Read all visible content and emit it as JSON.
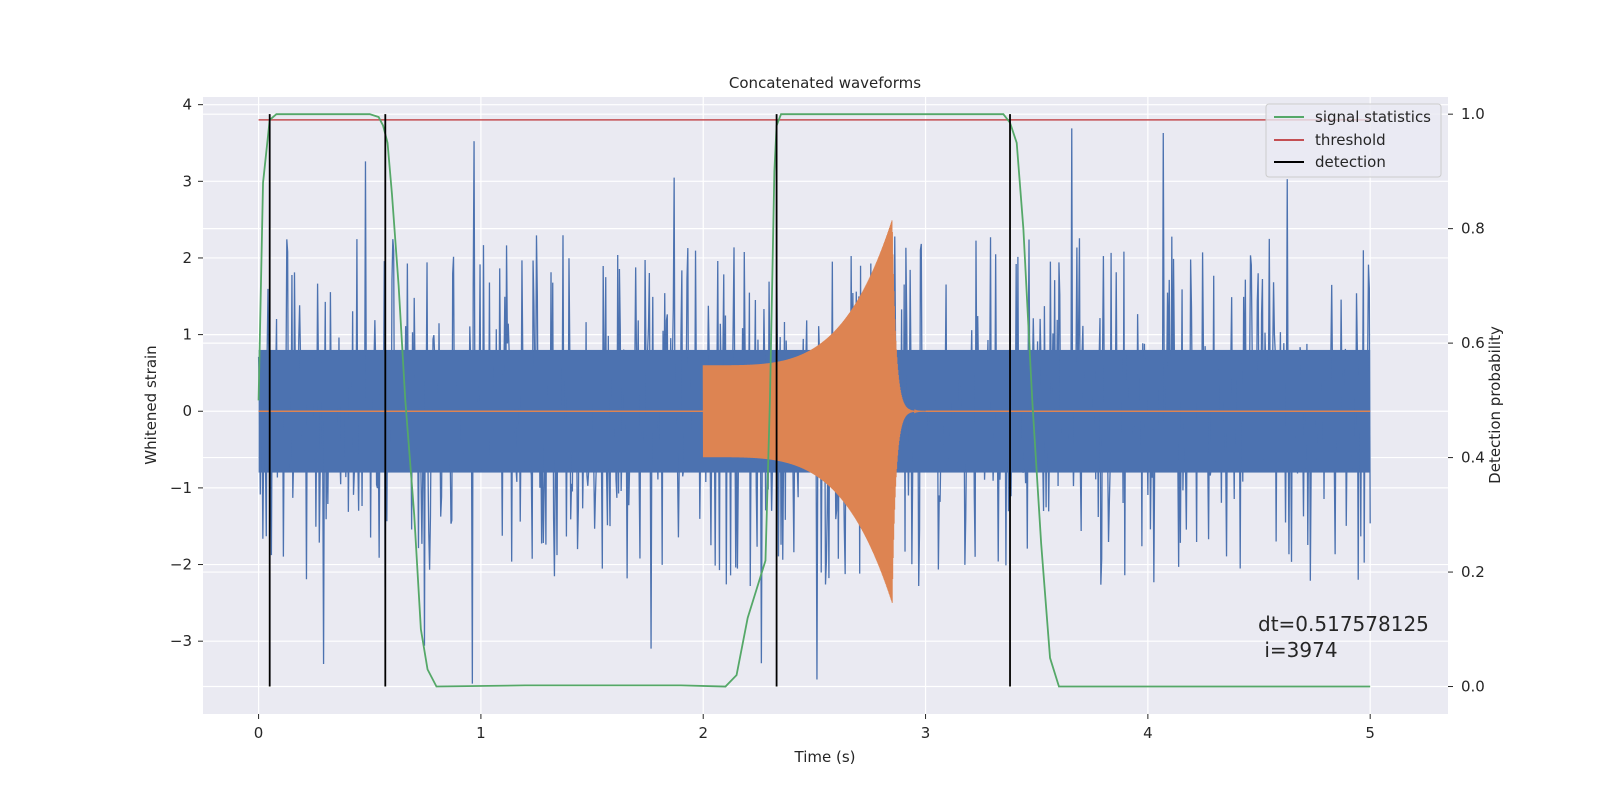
{
  "chart_data": {
    "type": "line",
    "title": "Concatenated waveforms",
    "xlabel": "Time (s)",
    "ylabel_left": "Whitened strain",
    "ylabel_right": "Detection probability",
    "xlim": [
      -0.25,
      5.35
    ],
    "ylim_left": [
      -3.95,
      4.1
    ],
    "ylim_right": [
      -0.048,
      1.03
    ],
    "x_ticks": [
      0,
      1,
      2,
      3,
      4,
      5
    ],
    "y_ticks_left": [
      -3,
      -2,
      -1,
      0,
      1,
      2,
      3,
      4
    ],
    "y_ticks_right": [
      0.0,
      0.2,
      0.4,
      0.6,
      0.8,
      1.0
    ],
    "grid": true,
    "legend_placement": "top-right",
    "series": [
      {
        "name": "",
        "axis": "left",
        "color": "#4c72b0",
        "description_values": {
          "x_range": [
            0,
            5
          ],
          "band": 0.8,
          "typical_extreme": 2.3,
          "peak_max": 3.75,
          "peak_min": -3.6
        }
      },
      {
        "name": "",
        "axis": "left",
        "color": "#dd8452",
        "chirp": {
          "start": 2.0,
          "merger": 2.85,
          "end": 3.0,
          "start_amp": 0.6,
          "max_amp": 2.5
        }
      },
      {
        "name": "signal statistics",
        "axis": "right",
        "color": "#55a868",
        "x": [
          0.0,
          0.02,
          0.05,
          0.08,
          0.1,
          0.5,
          0.54,
          0.56,
          0.58,
          0.6,
          0.63,
          0.66,
          0.7,
          0.73,
          0.76,
          0.8,
          1.2,
          1.9,
          2.1,
          2.15,
          2.2,
          2.24,
          2.28,
          2.3,
          2.32,
          2.33,
          2.35,
          2.4,
          3.35,
          3.38,
          3.41,
          3.44,
          3.48,
          3.52,
          3.56,
          3.6,
          4.0,
          5.0
        ],
        "y": [
          0.5,
          0.88,
          0.99,
          1.0,
          1.0,
          1.0,
          0.995,
          0.98,
          0.95,
          0.86,
          0.7,
          0.5,
          0.3,
          0.1,
          0.03,
          0.0,
          0.002,
          0.002,
          0.0,
          0.02,
          0.12,
          0.17,
          0.22,
          0.5,
          0.9,
          0.98,
          1.0,
          1.0,
          1.0,
          0.985,
          0.95,
          0.8,
          0.5,
          0.25,
          0.05,
          0.0,
          0.0,
          0.0
        ]
      },
      {
        "name": "threshold",
        "axis": "right",
        "color": "#c44e52",
        "x": [
          0,
          5
        ],
        "y": [
          0.99,
          0.99
        ]
      },
      {
        "name": "detection",
        "axis": "right",
        "color": "#000000",
        "vlines": [
          0.05,
          0.57,
          2.33,
          3.38
        ],
        "ymin": 0,
        "ymax": 1.0
      }
    ],
    "annotations": [
      {
        "text": "dt=0.517578125",
        "x": 4.5,
        "y": 0.1
      },
      {
        "text": " i=3974",
        "x": 4.5,
        "y": 0.06
      }
    ]
  },
  "legend": {
    "items": [
      {
        "label": "signal statistics",
        "color": "#55a868"
      },
      {
        "label": "threshold",
        "color": "#c44e52"
      },
      {
        "label": "detection",
        "color": "#000000"
      }
    ]
  }
}
